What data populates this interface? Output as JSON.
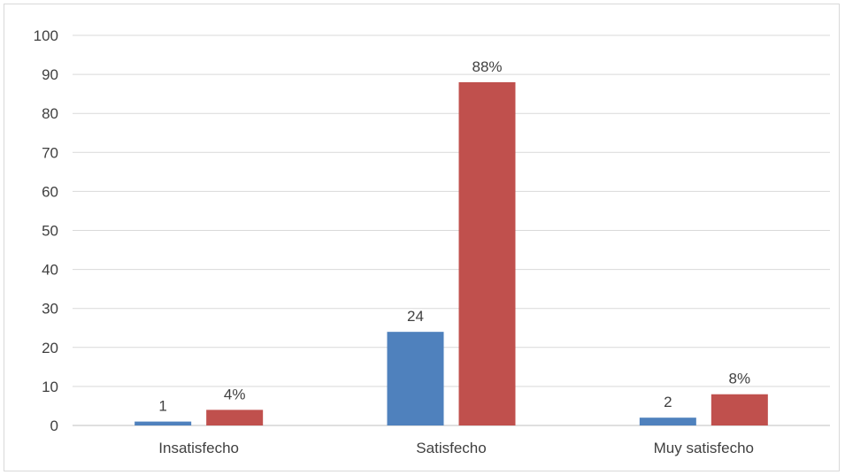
{
  "chart_data": {
    "type": "bar",
    "title": "",
    "xlabel": "",
    "ylabel": "",
    "categories": [
      "Insatisfecho",
      "Satisfecho",
      "Muy satisfecho"
    ],
    "series": [
      {
        "color": "#4f81bd",
        "values": [
          1,
          24,
          2
        ],
        "data_labels": [
          "1",
          "24",
          "2"
        ]
      },
      {
        "color": "#c0504d",
        "values": [
          4,
          88,
          8
        ],
        "data_labels": [
          "4%",
          "88%",
          "8%"
        ]
      }
    ],
    "ylim": [
      0,
      100
    ],
    "yticks": [
      "0",
      "10",
      "20",
      "30",
      "40",
      "50",
      "60",
      "70",
      "80",
      "90",
      "100"
    ],
    "grid": true,
    "legend": "none"
  }
}
